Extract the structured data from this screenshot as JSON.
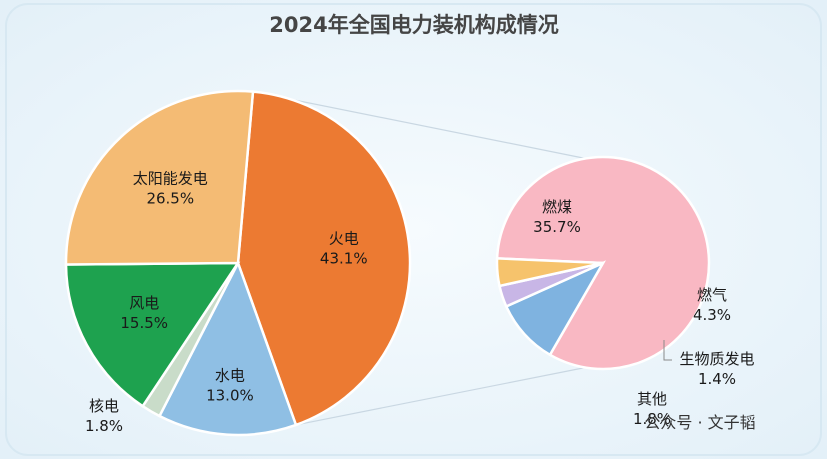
{
  "chart_data": [
    {
      "type": "pie",
      "title": "2024年全国电力装机构成情况",
      "slices": [
        {
          "label": "火电",
          "value_label": "43.1%",
          "value": 43.1,
          "color": "#ec7a32"
        },
        {
          "label": "水电",
          "value_label": "13.0%",
          "value": 13.0,
          "color": "#8fbfe4"
        },
        {
          "label": "核电",
          "value_label": "1.8%",
          "value": 1.8,
          "color": "#c9dcc9"
        },
        {
          "label": "风电",
          "value_label": "15.5%",
          "value": 15.5,
          "color": "#1ea24f"
        },
        {
          "label": "太阳能发电",
          "value_label": "26.5%",
          "value": 26.5,
          "color": "#f4bb74"
        }
      ]
    },
    {
      "type": "pie",
      "title": "",
      "slices": [
        {
          "label": "燃煤",
          "value_label": "35.7%",
          "value": 35.7,
          "color": "#f9b8c3"
        },
        {
          "label": "燃气",
          "value_label": "4.3%",
          "value": 4.3,
          "color": "#7fb3e0"
        },
        {
          "label": "生物质发电",
          "value_label": "1.4%",
          "value": 1.4,
          "color": "#c8b6e6"
        },
        {
          "label": "其他",
          "value_label": "1.8%",
          "value": 1.8,
          "color": "#f6c36c"
        }
      ]
    }
  ],
  "watermark": "公众号 · 文子韬",
  "colors": {
    "background": "#eef5fa",
    "title": "#454545"
  }
}
